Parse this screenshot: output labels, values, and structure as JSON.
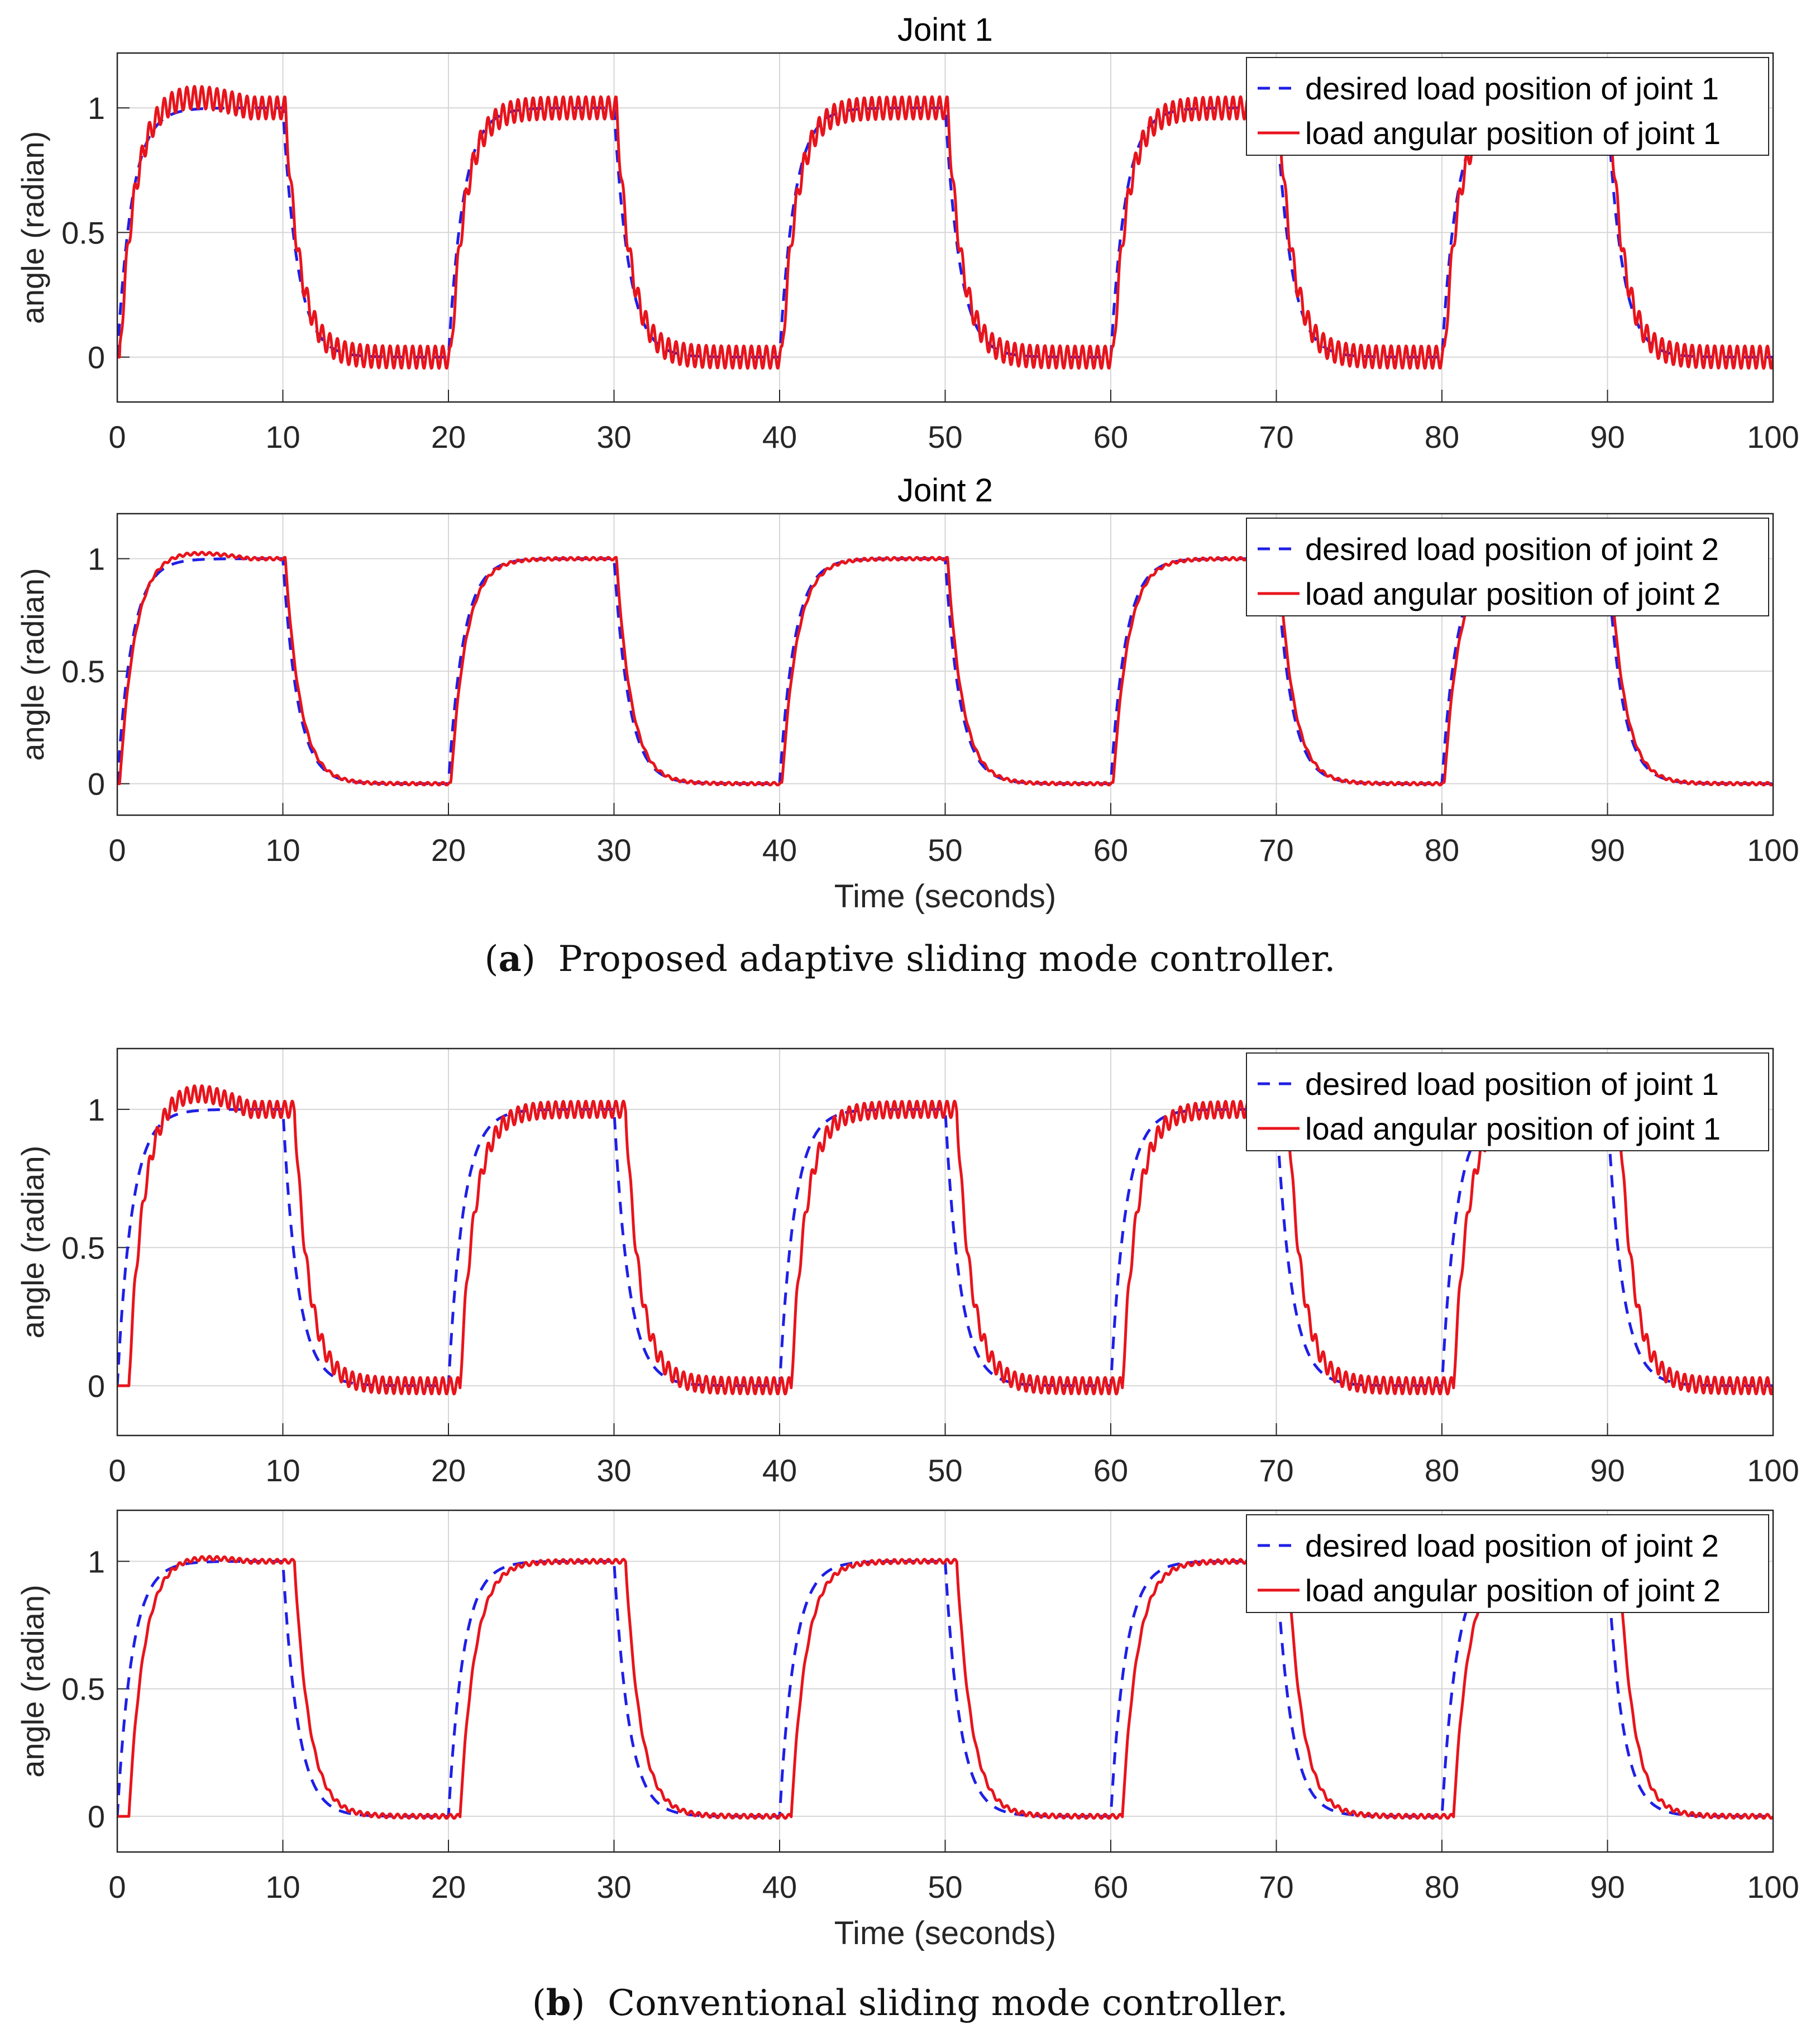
{
  "figure": {
    "caption_a": {
      "label": "a",
      "text": "Proposed adaptive sliding mode controller."
    },
    "caption_b": {
      "label": "b",
      "text": "Conventional sliding mode controller."
    }
  },
  "chart_data": [
    {
      "type": "line",
      "panel": "a",
      "title": "Joint 1",
      "xlabel": "",
      "ylabel": "angle (radian)",
      "xlim": [
        0,
        100
      ],
      "ylim": [
        -0.18,
        1.22
      ],
      "xticks": [
        "0",
        "10",
        "20",
        "30",
        "40",
        "50",
        "60",
        "70",
        "80",
        "90",
        "100"
      ],
      "yticks": [
        "0",
        "0.5",
        "1"
      ],
      "grid": true,
      "legend_position": "top-right",
      "series": [
        {
          "name": "desired load position of joint 1",
          "color": "#1f1fe6",
          "style": "dashed",
          "model": {
            "period": 20,
            "high_time": 10,
            "tau": 0.9,
            "lag": 0
          }
        },
        {
          "name": "load angular position of joint 1",
          "color": "#e8141c",
          "style": "solid",
          "model": {
            "period": 20,
            "high_time": 10,
            "tau": 0.9,
            "lag": 0.15,
            "chatter_amplitude": 0.045,
            "chatter_frequency": 2.2,
            "initial_overshoot": 0.05
          }
        }
      ]
    },
    {
      "type": "line",
      "panel": "a",
      "title": "Joint 2",
      "xlabel": "Time (seconds)",
      "ylabel": "angle (radian)",
      "xlim": [
        0,
        100
      ],
      "ylim": [
        -0.14,
        1.2
      ],
      "xticks": [
        "0",
        "10",
        "20",
        "30",
        "40",
        "50",
        "60",
        "70",
        "80",
        "90",
        "100"
      ],
      "yticks": [
        "0",
        "0.5",
        "1"
      ],
      "grid": true,
      "legend_position": "top-right",
      "series": [
        {
          "name": "desired load position of joint 2",
          "color": "#1f1fe6",
          "style": "dashed",
          "model": {
            "period": 20,
            "high_time": 10,
            "tau": 0.9,
            "lag": 0
          }
        },
        {
          "name": "load angular position of joint 2",
          "color": "#e8141c",
          "style": "solid",
          "model": {
            "period": 20,
            "high_time": 10,
            "tau": 0.9,
            "lag": 0.15,
            "chatter_amplitude": 0.006,
            "chatter_frequency": 2.2,
            "initial_overshoot": 0.03
          }
        }
      ]
    },
    {
      "type": "line",
      "panel": "b",
      "title": "",
      "xlabel": "",
      "ylabel": "angle (radian)",
      "xlim": [
        0,
        100
      ],
      "ylim": [
        -0.18,
        1.22
      ],
      "xticks": [
        "0",
        "10",
        "20",
        "30",
        "40",
        "50",
        "60",
        "70",
        "80",
        "90",
        "100"
      ],
      "yticks": [
        "0",
        "0.5",
        "1"
      ],
      "grid": true,
      "legend_position": "top-right",
      "series": [
        {
          "name": "desired load position of joint 1",
          "color": "#1f1fe6",
          "style": "dashed",
          "model": {
            "period": 20,
            "high_time": 10,
            "tau": 0.9,
            "lag": 0
          }
        },
        {
          "name": "load angular position of joint 1",
          "color": "#e8141c",
          "style": "solid",
          "model": {
            "period": 20,
            "high_time": 10,
            "tau": 0.9,
            "lag": 0.7,
            "chatter_amplitude": 0.03,
            "chatter_frequency": 2.2,
            "initial_overshoot": 0.07
          }
        }
      ]
    },
    {
      "type": "line",
      "panel": "b",
      "title": "",
      "xlabel": "Time (seconds)",
      "ylabel": "angle (radian)",
      "xlim": [
        0,
        100
      ],
      "ylim": [
        -0.14,
        1.2
      ],
      "xticks": [
        "0",
        "10",
        "20",
        "30",
        "40",
        "50",
        "60",
        "70",
        "80",
        "90",
        "100"
      ],
      "yticks": [
        "0",
        "0.5",
        "1"
      ],
      "grid": true,
      "legend_position": "top-right",
      "series": [
        {
          "name": "desired load position of joint 2",
          "color": "#1f1fe6",
          "style": "dashed",
          "model": {
            "period": 20,
            "high_time": 10,
            "tau": 0.9,
            "lag": 0
          }
        },
        {
          "name": "load angular position of joint 2",
          "color": "#e8141c",
          "style": "solid",
          "model": {
            "period": 20,
            "high_time": 10,
            "tau": 0.9,
            "lag": 0.7,
            "chatter_amplitude": 0.008,
            "chatter_frequency": 2.2,
            "initial_overshoot": 0.02
          }
        }
      ]
    }
  ]
}
